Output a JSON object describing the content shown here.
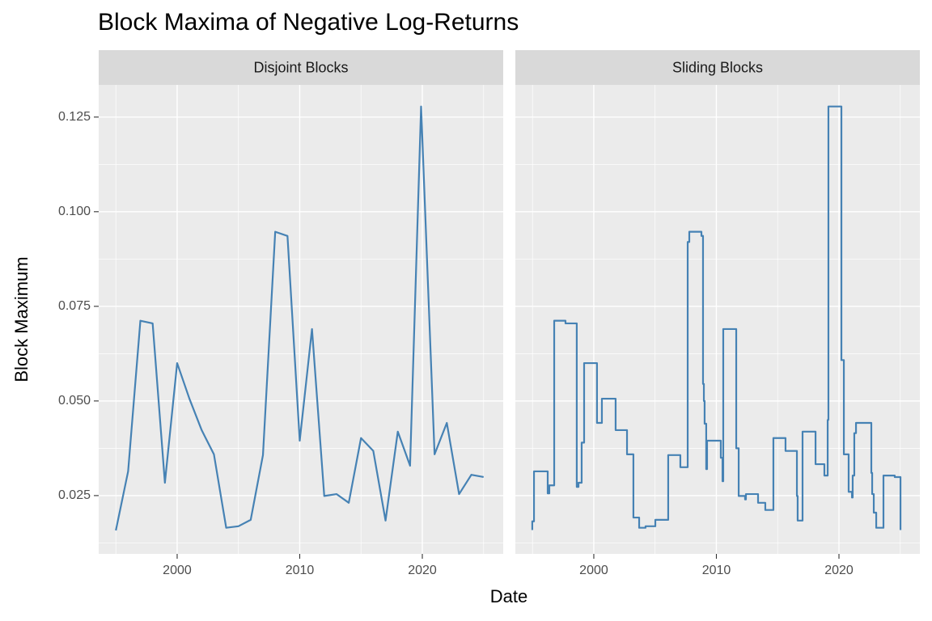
{
  "chart_data": {
    "type": "line",
    "title": "Block Maxima of Negative Log-Returns",
    "x_label": "Date",
    "y_label": "Block Maximum",
    "color": "#4682b4",
    "grid": true,
    "minor_grid": true,
    "xlim": [
      1993.6,
      2026.6
    ],
    "xticks": [
      2000,
      2010,
      2020
    ],
    "ylim": [
      0.0096,
      0.1335
    ],
    "yticks": [
      0.025,
      {
        "value": 0.05,
        "label": "0.050"
      },
      0.075,
      {
        "value": 0.1,
        "label": "0.100"
      },
      0.125
    ],
    "panels": [
      {
        "title": "Disjoint Blocks",
        "x": [
          1995,
          1996,
          1997,
          1998,
          1999,
          2000,
          2001,
          2002,
          2003,
          2004,
          2005,
          2006,
          2007,
          2008,
          2009,
          2010,
          2011,
          2012,
          2013,
          2014,
          2015,
          2016,
          2017,
          2018,
          2019,
          2019.9,
          2021,
          2022,
          2023,
          2024,
          2025
        ],
        "values": [
          0.0158,
          0.0314,
          0.0712,
          0.0705,
          0.0284,
          0.06,
          0.0506,
          0.0423,
          0.0359,
          0.0165,
          0.0169,
          0.0186,
          0.0357,
          0.0947,
          0.0936,
          0.0395,
          0.069,
          0.0249,
          0.0254,
          0.0231,
          0.0402,
          0.0368,
          0.0184,
          0.0419,
          0.0329,
          0.1278,
          0.0359,
          0.0442,
          0.0254,
          0.0305,
          0.0299
        ]
      },
      {
        "title": "Sliding Blocks",
        "x": [
          1994.98,
          1994.98,
          1995.12,
          1995.12,
          1996.24,
          1996.24,
          1996.37,
          1996.37,
          1996.77,
          1996.77,
          1997.69,
          1997.69,
          1998.61,
          1998.61,
          1998.75,
          1998.75,
          1999.01,
          1999.01,
          1999.21,
          1999.21,
          2000.26,
          2000.26,
          2000.66,
          2000.66,
          2001.78,
          2001.78,
          2002.71,
          2002.71,
          2003.23,
          2003.23,
          2003.7,
          2003.7,
          2004.22,
          2004.22,
          2005.02,
          2005.02,
          2006.07,
          2006.07,
          2007.06,
          2007.06,
          2007.66,
          2007.66,
          2007.79,
          2007.79,
          2008.78,
          2008.78,
          2008.91,
          2008.91,
          2008.98,
          2008.98,
          2009.04,
          2009.04,
          2009.17,
          2009.17,
          2009.24,
          2009.24,
          2010.36,
          2010.36,
          2010.5,
          2010.5,
          2010.56,
          2010.56,
          2011.62,
          2011.62,
          2011.82,
          2011.82,
          2012.34,
          2012.34,
          2012.41,
          2012.41,
          2013.4,
          2013.4,
          2013.99,
          2013.99,
          2014.65,
          2014.65,
          2015.64,
          2015.64,
          2016.57,
          2016.57,
          2016.63,
          2016.63,
          2017.03,
          2017.03,
          2018.09,
          2018.09,
          2018.81,
          2018.81,
          2019.08,
          2019.08,
          2019.14,
          2019.14,
          2020.2,
          2020.2,
          2020.4,
          2020.4,
          2020.79,
          2020.79,
          2021.06,
          2021.06,
          2021.12,
          2021.12,
          2021.25,
          2021.25,
          2021.39,
          2021.39,
          2022.64,
          2022.64,
          2022.71,
          2022.71,
          2022.84,
          2022.84,
          2023.04,
          2023.04,
          2023.63,
          2023.63,
          2024.55,
          2024.55,
          2025.02,
          2025.02
        ],
        "values": [
          0.0159,
          0.0182,
          0.0182,
          0.0314,
          0.0314,
          0.0256,
          0.0256,
          0.0277,
          0.0277,
          0.0712,
          0.0712,
          0.0705,
          0.0705,
          0.0273,
          0.0273,
          0.0284,
          0.0284,
          0.039,
          0.039,
          0.06,
          0.06,
          0.0442,
          0.0442,
          0.0506,
          0.0506,
          0.0423,
          0.0423,
          0.0359,
          0.0359,
          0.0192,
          0.0192,
          0.0165,
          0.0165,
          0.0169,
          0.0169,
          0.0186,
          0.0186,
          0.0357,
          0.0357,
          0.0325,
          0.0325,
          0.092,
          0.092,
          0.0947,
          0.0947,
          0.0936,
          0.0936,
          0.0545,
          0.0545,
          0.05,
          0.05,
          0.044,
          0.044,
          0.032,
          0.032,
          0.0395,
          0.0395,
          0.035,
          0.035,
          0.0288,
          0.0288,
          0.069,
          0.069,
          0.0375,
          0.0375,
          0.0249,
          0.0249,
          0.024,
          0.024,
          0.0254,
          0.0254,
          0.0231,
          0.0231,
          0.0212,
          0.0212,
          0.0402,
          0.0402,
          0.0368,
          0.0368,
          0.0249,
          0.0249,
          0.0184,
          0.0184,
          0.0419,
          0.0419,
          0.0333,
          0.0333,
          0.0303,
          0.0303,
          0.045,
          0.045,
          0.1278,
          0.1278,
          0.0608,
          0.0608,
          0.0359,
          0.0359,
          0.026,
          0.026,
          0.0245,
          0.0245,
          0.0303,
          0.0303,
          0.0415,
          0.0415,
          0.0442,
          0.0442,
          0.031,
          0.031,
          0.0254,
          0.0254,
          0.0205,
          0.0205,
          0.0165,
          0.0165,
          0.0303,
          0.0303,
          0.0299,
          0.0299,
          0.0159
        ]
      }
    ]
  }
}
